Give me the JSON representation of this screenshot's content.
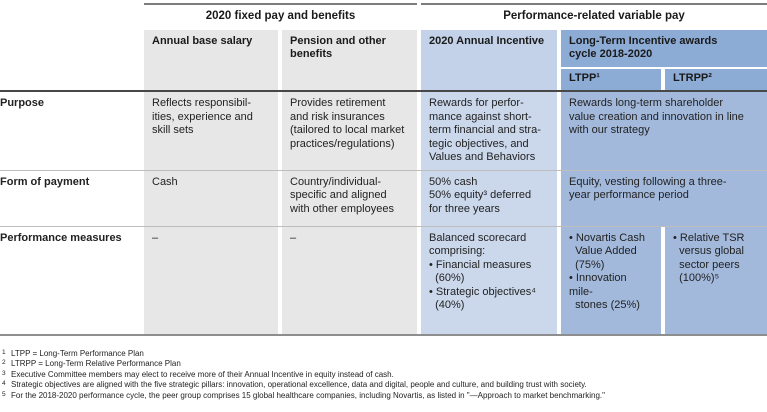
{
  "table": {
    "group_headers": {
      "fixed_pay": "2020 fixed pay and benefits",
      "variable_pay": "Performance-related variable pay"
    },
    "column_headers": {
      "annual_base_salary": "Annual base salary",
      "pension": "Pension and other\nbenefits",
      "annual_incentive": "2020 Annual Incentive",
      "lti_cycle": "Long-Term Incentive awards\ncycle 2018-2020",
      "ltpp": "LTPP¹",
      "ltrpp": "LTRPP²"
    },
    "rows": {
      "purpose": {
        "label": "Purpose",
        "annual_base_salary": "Reflects responsibil-\nities, experience and\nskill sets",
        "pension": "Provides retirement\nand risk insurances\n(tailored to local market\npractices/regulations)",
        "annual_incentive": "Rewards for perfor-\nmance against short-\nterm financial and stra-\ntegic objectives, and\nValues and Behaviors",
        "lti": "Rewards long-term shareholder\nvalue creation and innovation in line\nwith our strategy"
      },
      "form_of_payment": {
        "label": "Form of payment",
        "annual_base_salary": "Cash",
        "pension": "Country/individual-\nspecific and aligned\nwith other employees",
        "annual_incentive": "50% cash\n50% equity³ deferred\nfor three years",
        "lti": "Equity, vesting following a three-\nyear performance period"
      },
      "performance_measures": {
        "label": "Performance measures",
        "annual_base_salary": "–",
        "pension": "–",
        "annual_incentive": "Balanced scorecard\ncomprising:\n• Financial measures\n  (60%)\n• Strategic objectives⁴\n  (40%)",
        "ltpp": "• Novartis Cash\n  Value Added\n  (75%)\n• Innovation mile-\n  stones (25%)",
        "ltrpp": "• Relative TSR\n  versus global\n  sector peers\n  (100%)⁵"
      }
    },
    "footnotes": [
      {
        "marker": "1",
        "text": "LTPP = Long-Term Performance Plan"
      },
      {
        "marker": "2",
        "text": "LTRPP = Long-Term Relative Performance Plan"
      },
      {
        "marker": "3",
        "text": "Executive Committee members may elect to receive more of their Annual Incentive in equity instead of cash."
      },
      {
        "marker": "4",
        "text": "Strategic objectives are aligned with the five strategic pillars: innovation, operational excellence, data and digital, people and culture, and building trust with society."
      },
      {
        "marker": "5",
        "text": "For the 2018-2020 performance cycle, the peer group comprises 15 global healthcare companies, including Novartis, as listed in \"—Approach to market benchmarking.\""
      }
    ],
    "colors": {
      "gray_cell": "#e7e7e7",
      "light_blue_header": "#c3d2e8",
      "light_blue_cell": "#cbd8ec",
      "medium_blue_header": "#8cabd5",
      "medium_blue_cell": "#a2b9dc"
    }
  }
}
